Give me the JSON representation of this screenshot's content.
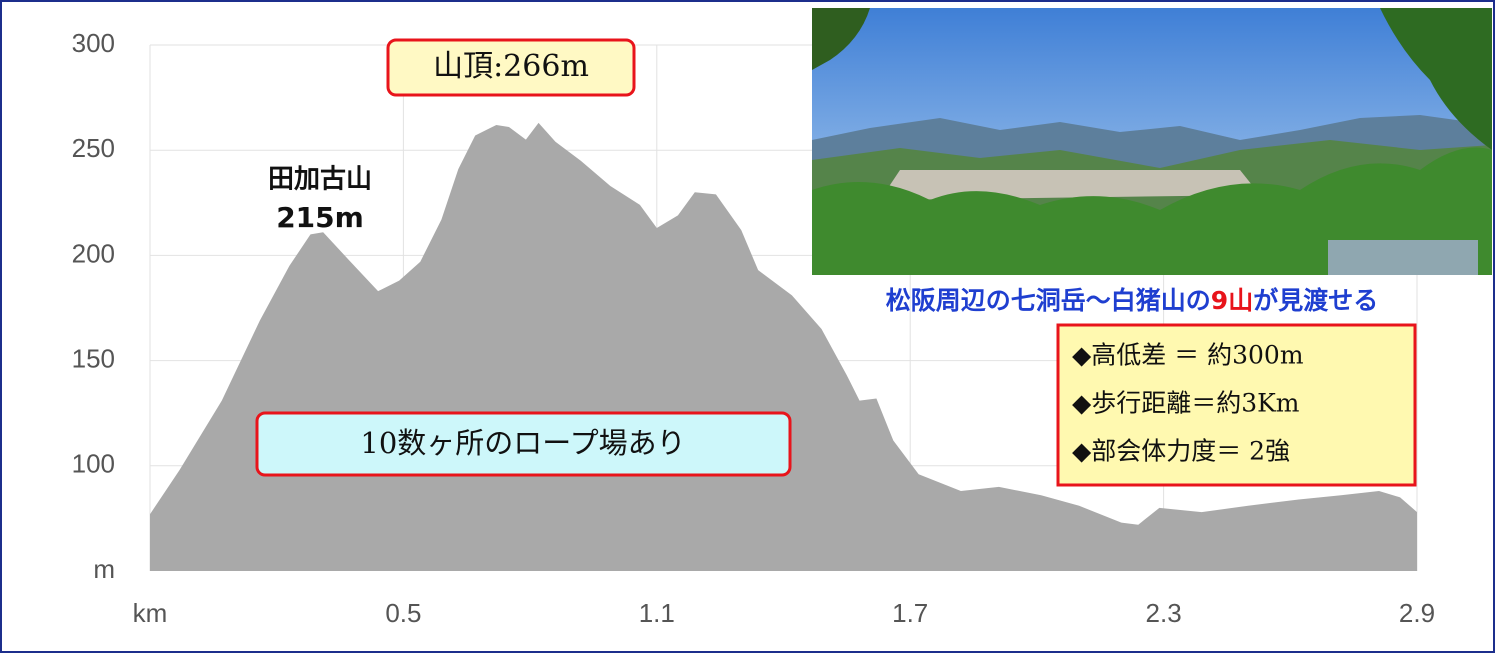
{
  "chart_data": {
    "type": "area",
    "x_label": "km",
    "y_label": "m",
    "color": "#a9a9a9",
    "grid": true,
    "xlim": [
      -0.1,
      2.9
    ],
    "xticks": [
      0.5,
      1.1,
      1.7,
      2.3,
      2.9
    ],
    "ylim": [
      50,
      300
    ],
    "yticks": [
      100,
      150,
      200,
      250,
      300
    ],
    "x": [
      -0.1,
      -0.03,
      0.07,
      0.16,
      0.23,
      0.28,
      0.31,
      0.37,
      0.44,
      0.49,
      0.54,
      0.59,
      0.63,
      0.67,
      0.72,
      0.75,
      0.79,
      0.82,
      0.86,
      0.92,
      0.99,
      1.06,
      1.1,
      1.15,
      1.19,
      1.24,
      1.3,
      1.34,
      1.42,
      1.49,
      1.55,
      1.58,
      1.62,
      1.66,
      1.72,
      1.82,
      1.91,
      2.01,
      2.1,
      2.2,
      2.24,
      2.29,
      2.39,
      2.5,
      2.62,
      2.72,
      2.81,
      2.86,
      2.9
    ],
    "values": [
      77,
      98,
      131,
      169,
      195,
      210,
      211,
      198,
      183,
      188,
      197,
      217,
      241,
      257,
      262,
      261,
      255,
      263,
      254,
      245,
      233,
      224,
      213,
      219,
      230,
      229,
      212,
      193,
      181,
      165,
      143,
      131,
      132,
      112,
      96,
      88,
      90,
      86,
      81,
      73,
      72,
      80,
      78,
      81,
      84,
      86,
      88,
      85,
      78
    ],
    "annotations": {
      "summit": "山頂:266m",
      "peak_name": "田加古山",
      "peak_height": "215m",
      "rope": "10数ヶ所のロープ場あり"
    },
    "photo_caption": [
      "松阪周辺の七洞岳～白猪山の",
      "9山",
      "が見渡せる"
    ],
    "info": [
      "◆高低差 ＝ 約300m",
      "◆歩行距離＝約3Km",
      "◆部会体力度＝ 2強"
    ]
  }
}
